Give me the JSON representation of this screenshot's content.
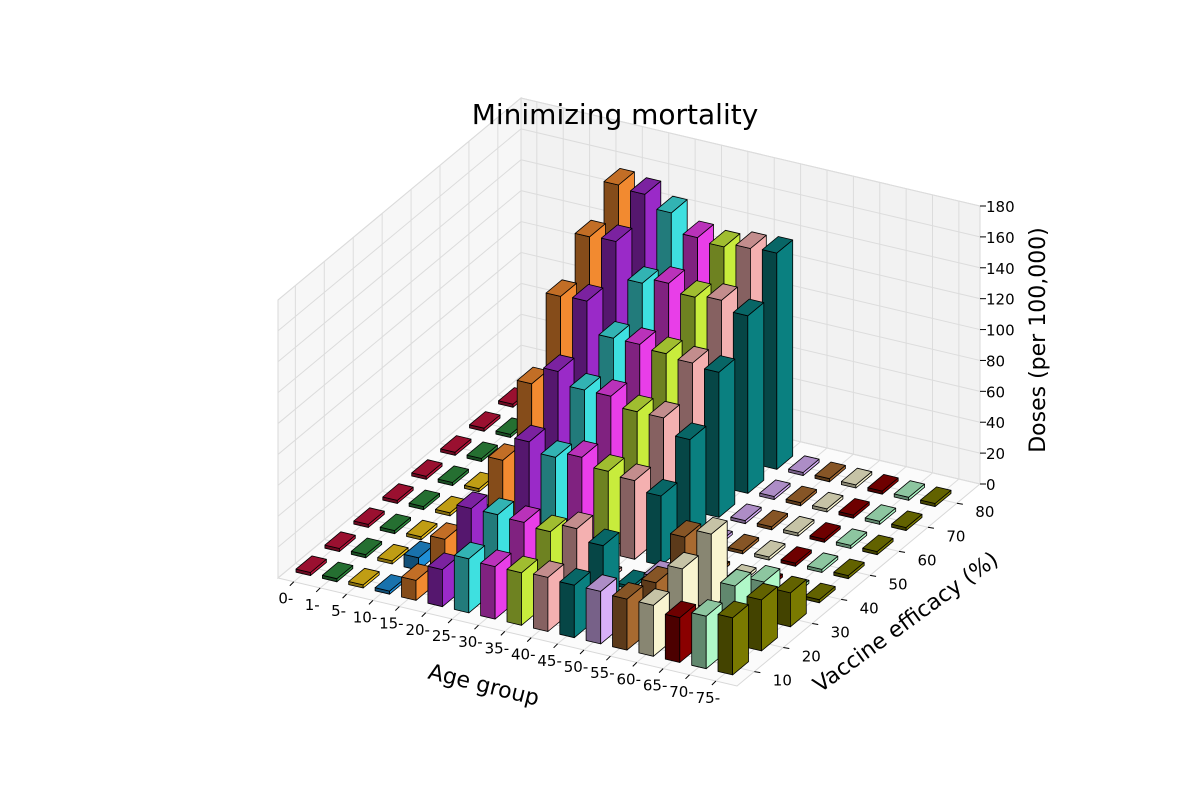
{
  "chart_data": {
    "type": "bar",
    "subtype": "3d-bar",
    "title": "Minimizing mortality",
    "xlabel": "Age group",
    "ylabel": "Vaccine efficacy (%)",
    "zlabel": "Doses (per 100,000)",
    "categories": [
      "0-",
      "1-",
      "5-",
      "10-",
      "15-",
      "20-",
      "25-",
      "30-",
      "35-",
      "40-",
      "45-",
      "50-",
      "55-",
      "60-",
      "65-",
      "70-",
      "75-"
    ],
    "efficacy": [
      10,
      20,
      30,
      40,
      50,
      60,
      70,
      80
    ],
    "efficacy_ticks": [
      "10",
      "20",
      "30",
      "40",
      "50",
      "60",
      "70",
      "80"
    ],
    "z_ticks": [
      "0",
      "20",
      "40",
      "60",
      "80",
      "100",
      "120",
      "140",
      "160",
      "180"
    ],
    "zlim": [
      0,
      180
    ],
    "grid": true,
    "colors": [
      "#c0143c",
      "#2e8b3d",
      "#f0c419",
      "#1f8fd8",
      "#f28a30",
      "#9a2ac8",
      "#3ee0e0",
      "#e83ee8",
      "#c8ec3c",
      "#f4b0b0",
      "#0a8080",
      "#d8b0f8",
      "#a86a30",
      "#f8f4d0",
      "#8a0000",
      "#b0f8c8",
      "#7a7a00"
    ],
    "series": [
      {
        "name": "10",
        "values": [
          1,
          1,
          1,
          1,
          13,
          24,
          35,
          34,
          34,
          35,
          34,
          34,
          33,
          33,
          29,
          34,
          37
        ]
      },
      {
        "name": "20",
        "values": [
          0,
          2,
          0,
          8,
          24,
          48,
          48,
          47,
          45,
          51,
          44,
          13,
          28,
          41,
          3,
          38,
          33
        ]
      },
      {
        "name": "30",
        "values": [
          0,
          0,
          0,
          0,
          0,
          0,
          0,
          0,
          0,
          0,
          0,
          12,
          42,
          48,
          0,
          25,
          22
        ]
      },
      {
        "name": "40",
        "values": [
          0,
          0,
          0,
          0,
          44,
          60,
          54,
          58,
          53,
          51,
          45,
          0,
          0,
          0,
          0,
          0,
          0
        ]
      },
      {
        "name": "50",
        "values": [
          0,
          0,
          0,
          0,
          78,
          90,
          82,
          82,
          76,
          76,
          66,
          0,
          0,
          0,
          0,
          0,
          0
        ]
      },
      {
        "name": "60",
        "values": [
          0,
          0,
          0,
          0,
          119,
          120,
          100,
          100,
          98,
          96,
          94,
          0,
          0,
          0,
          0,
          0,
          0
        ]
      },
      {
        "name": "70",
        "values": [
          0,
          0,
          0,
          0,
          142,
          143,
          120,
          124,
          119,
          121,
          115,
          0,
          0,
          0,
          0,
          0,
          0
        ]
      },
      {
        "name": "80",
        "values": [
          0,
          0,
          0,
          0,
          160,
          158,
          150,
          138,
          136,
          139,
          140,
          0,
          0,
          0,
          0,
          0,
          0
        ]
      }
    ]
  }
}
